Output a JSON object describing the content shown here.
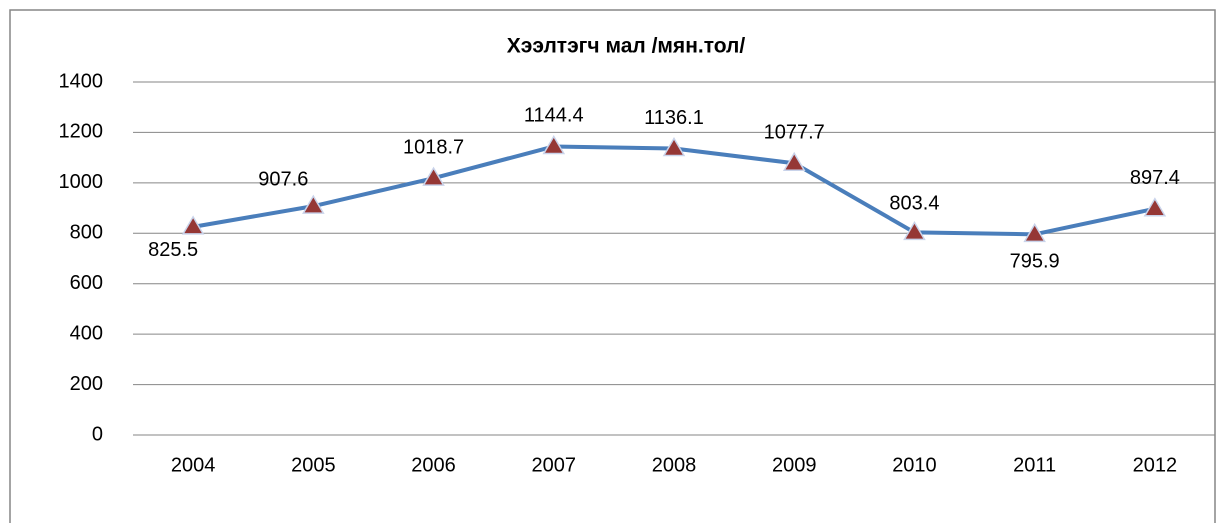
{
  "chart_data": {
    "type": "line",
    "title": "Хээлтэгч мал  /мян.тол/",
    "categories": [
      "2004",
      "2005",
      "2006",
      "2007",
      "2008",
      "2009",
      "2010",
      "2011",
      "2012"
    ],
    "series": [
      {
        "name": "Хээлтэгч мал",
        "color": "#4a7ebb",
        "marker_color": "#953735",
        "values": [
          825.5,
          907.6,
          1018.7,
          1144.4,
          1136.1,
          1077.7,
          803.4,
          795.9,
          897.4
        ]
      }
    ],
    "ylim": [
      0,
      1400
    ],
    "yticks": [
      0,
      200,
      400,
      600,
      800,
      1000,
      1200,
      1400
    ],
    "grid": true
  }
}
